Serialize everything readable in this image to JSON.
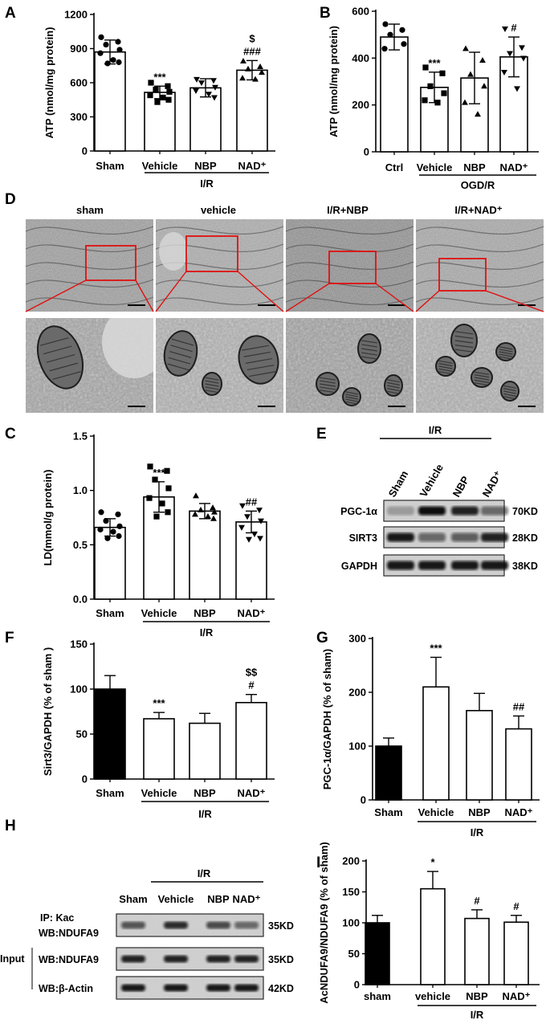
{
  "chart_data": [
    {
      "panel": "A",
      "type": "bar",
      "ylabel": "ATP (nmol/mg protein)",
      "categories": [
        "Sham",
        "Vehicle",
        "NBP",
        "NAD⁺"
      ],
      "group_label": "I/R",
      "ylim": [
        0,
        1200
      ],
      "yticks": [
        "0",
        "300",
        "600",
        "900",
        "1200"
      ],
      "values": [
        870,
        515,
        555,
        710
      ],
      "errors": [
        105,
        55,
        80,
        85
      ],
      "points": [
        [
          1000,
          960,
          935,
          890,
          860,
          800,
          780,
          770
        ],
        [
          600,
          570,
          540,
          520,
          490,
          470,
          450,
          430
        ],
        [
          630,
          620,
          600,
          560,
          530,
          500,
          470
        ],
        [
          790,
          740,
          720,
          690,
          640,
          630
        ]
      ],
      "markers": [
        "circle",
        "square",
        "triangle-down",
        "triangle"
      ],
      "annotations": [
        {
          "cat": 1,
          "lines": [
            "***"
          ]
        },
        {
          "cat": 3,
          "lines": [
            "$",
            "###"
          ]
        }
      ],
      "fills": [
        "#ffffff",
        "#ffffff",
        "#ffffff",
        "#ffffff"
      ]
    },
    {
      "panel": "B",
      "type": "bar",
      "ylabel": "ATP (nmol/mg protein)",
      "categories": [
        "Ctrl",
        "Vehicle",
        "NBP",
        "NAD⁺"
      ],
      "group_label": "OGD/R",
      "ylim": [
        0,
        600
      ],
      "yticks": [
        "0",
        "200",
        "400",
        "600"
      ],
      "values": [
        490,
        275,
        315,
        405
      ],
      "errors": [
        55,
        65,
        110,
        85
      ],
      "points": [
        [
          545,
          520,
          500,
          460,
          440
        ],
        [
          360,
          335,
          280,
          250,
          220,
          210
        ],
        [
          440,
          390,
          330,
          280,
          210,
          160
        ],
        [
          525,
          445,
          420,
          400,
          340,
          270
        ]
      ],
      "markers": [
        "circle",
        "square",
        "triangle",
        "triangle-down"
      ],
      "annotations": [
        {
          "cat": 1,
          "lines": [
            "***"
          ]
        },
        {
          "cat": 3,
          "lines": [
            "#"
          ]
        }
      ],
      "fills": [
        "#ffffff",
        "#ffffff",
        "#ffffff",
        "#ffffff"
      ]
    },
    {
      "panel": "C",
      "type": "bar",
      "ylabel": "LD(mmol/g protein)",
      "categories": [
        "Sham",
        "Vehicle",
        "NBP",
        "NAD⁺"
      ],
      "group_label": "I/R",
      "ylim": [
        0,
        1.5
      ],
      "yticks": [
        "0.0",
        "0.5",
        "1.0",
        "1.5"
      ],
      "values": [
        0.66,
        0.94,
        0.81,
        0.71
      ],
      "errors": [
        0.08,
        0.14,
        0.07,
        0.1
      ],
      "points": [
        [
          0.8,
          0.78,
          0.72,
          0.67,
          0.64,
          0.62,
          0.58,
          0.56
        ],
        [
          1.22,
          1.18,
          1.1,
          1.02,
          0.93,
          0.88,
          0.8,
          0.76
        ],
        [
          0.95,
          0.84,
          0.82,
          0.8,
          0.78,
          0.76,
          0.74
        ],
        [
          0.86,
          0.82,
          0.76,
          0.72,
          0.66,
          0.6,
          0.56,
          0.55
        ]
      ],
      "markers": [
        "circle",
        "square",
        "triangle",
        "triangle-down"
      ],
      "annotations": [
        {
          "cat": 1,
          "lines": [
            "***"
          ]
        },
        {
          "cat": 3,
          "lines": [
            "##"
          ]
        }
      ],
      "fills": [
        "#ffffff",
        "#ffffff",
        "#ffffff",
        "#ffffff"
      ]
    },
    {
      "panel": "F",
      "type": "bar",
      "ylabel": "Sirt3/GAPDH (% of sham )",
      "categories": [
        "Sham",
        "Vehicle",
        "NBP",
        "NAD⁺"
      ],
      "group_label": "I/R",
      "ylim": [
        0,
        150
      ],
      "yticks": [
        "0",
        "50",
        "100",
        "150"
      ],
      "values": [
        100,
        67,
        62,
        85
      ],
      "errors": [
        15,
        7,
        11,
        9
      ],
      "points": [],
      "markers": [],
      "annotations": [
        {
          "cat": 1,
          "lines": [
            "***"
          ]
        },
        {
          "cat": 3,
          "lines": [
            "$$",
            "#"
          ]
        }
      ],
      "fills": [
        "#000000",
        "#ffffff",
        "#ffffff",
        "#ffffff"
      ]
    },
    {
      "panel": "G",
      "type": "bar",
      "ylabel": "PGC-1α/GAPDH (% of sham)",
      "categories": [
        "Sham",
        "Vehicle",
        "NBP",
        "NAD⁺"
      ],
      "group_label": "I/R",
      "ylim": [
        0,
        300
      ],
      "yticks": [
        "0",
        "100",
        "200",
        "300"
      ],
      "values": [
        100,
        210,
        166,
        132
      ],
      "errors": [
        15,
        55,
        32,
        24
      ],
      "points": [],
      "markers": [],
      "annotations": [
        {
          "cat": 1,
          "lines": [
            "***"
          ]
        },
        {
          "cat": 3,
          "lines": [
            "##"
          ]
        }
      ],
      "fills": [
        "#000000",
        "#ffffff",
        "#ffffff",
        "#ffffff"
      ]
    },
    {
      "panel": "I",
      "type": "bar",
      "ylabel": "AcNDUFA9/NDUFA9 (% of sham)",
      "categories": [
        "sham",
        "vehicle",
        "NBP",
        "NAD⁺"
      ],
      "group_label": "I/R",
      "ylim": [
        0,
        200
      ],
      "yticks": [
        "0",
        "50",
        "100",
        "150",
        "200"
      ],
      "values": [
        100,
        155,
        107,
        101
      ],
      "errors": [
        12,
        28,
        14,
        11
      ],
      "points": [],
      "markers": [],
      "annotations": [
        {
          "cat": 1,
          "lines": [
            "*"
          ]
        },
        {
          "cat": 2,
          "lines": [
            "#"
          ]
        },
        {
          "cat": 3,
          "lines": [
            "#"
          ]
        }
      ],
      "fills": [
        "#000000",
        "#ffffff",
        "#ffffff",
        "#ffffff"
      ]
    }
  ],
  "panel_D": {
    "letter": "D",
    "labels": [
      "sham",
      "vehicle",
      "I/R+NBP",
      "I/R+NAD⁺"
    ]
  },
  "panel_E": {
    "letter": "E",
    "group_label": "I/R",
    "lanes": [
      "Sham",
      "Vehicle",
      "NBP",
      "NAD⁺"
    ],
    "rows": [
      {
        "name": "PGC-1α",
        "size": "70KD",
        "intensity": [
          0.25,
          1.0,
          0.9,
          0.55
        ]
      },
      {
        "name": "SIRT3",
        "size": "28KD",
        "intensity": [
          0.95,
          0.55,
          0.6,
          0.9
        ]
      },
      {
        "name": "GAPDH",
        "size": "38KD",
        "intensity": [
          0.95,
          0.95,
          0.95,
          0.95
        ]
      }
    ]
  },
  "panel_H": {
    "letter": "H",
    "group_label": "I/R",
    "lanes": [
      "Sham",
      "Vehicle",
      "NBP",
      "NAD⁺"
    ],
    "ip_label": "IP:  Kac",
    "input_label": "Input",
    "rows": [
      {
        "name": "WB:NDUFA9",
        "size": "35KD",
        "intensity": [
          0.65,
          0.85,
          0.7,
          0.55
        ]
      },
      {
        "name": "WB:NDUFA9",
        "size": "35KD",
        "intensity": [
          0.9,
          0.9,
          0.9,
          0.9
        ]
      },
      {
        "name": "WB:β-Actin",
        "size": "42KD",
        "intensity": [
          0.95,
          0.95,
          0.95,
          0.95
        ]
      }
    ]
  }
}
